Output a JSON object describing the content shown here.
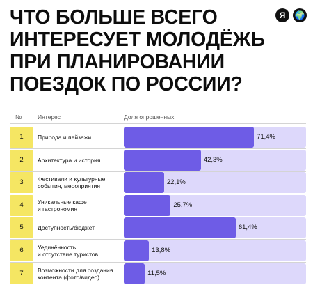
{
  "title_lines": [
    "ЧТО БОЛЬШЕ ВСЕГО",
    "ИНТЕРЕСУЕТ МОЛОДЁЖЬ",
    "ПРИ ПЛАНИРОВАНИИ",
    "ПОЕЗДОК ПО РОССИИ?"
  ],
  "logos": [
    "Я",
    "🌍"
  ],
  "headers": {
    "number": "№",
    "interest": "Интерес",
    "share": "Доля опрошенных"
  },
  "colors": {
    "number_box": "#f5e663",
    "bar_track": "#ddd8fb",
    "bar_fill": "#6e5ce6"
  },
  "chart_data": {
    "type": "bar",
    "orientation": "horizontal",
    "title": "ЧТО БОЛЬШЕ ВСЕГО ИНТЕРЕСУЕТ МОЛОДЁЖЬ ПРИ ПЛАНИРОВАНИИ ПОЕЗДОК ПО РОССИИ?",
    "xlabel": "Доля опрошенных",
    "ylabel": "Интерес",
    "xlim": [
      0,
      100
    ],
    "rows": [
      {
        "rank": "1",
        "category": "Природа и пейзажи",
        "value": 71.4,
        "value_label": "71,4%"
      },
      {
        "rank": "2",
        "category": "Архитектура и история",
        "value": 42.3,
        "value_label": "42,3%"
      },
      {
        "rank": "3",
        "category": "Фестивали и культурные\nсобытия, мероприятия",
        "value": 22.1,
        "value_label": "22,1%"
      },
      {
        "rank": "4",
        "category": "Уникальные кафе\nи гастрономия",
        "value": 25.7,
        "value_label": "25,7%"
      },
      {
        "rank": "5",
        "category": "Доступность/бюджет",
        "value": 61.4,
        "value_label": "61,4%"
      },
      {
        "rank": "6",
        "category": "Уединённость\nи отсутствие туристов",
        "value": 13.8,
        "value_label": "13,8%"
      },
      {
        "rank": "7",
        "category": "Возможности для создания\nконтента (фото/видео)",
        "value": 11.5,
        "value_label": "11,5%"
      }
    ]
  }
}
